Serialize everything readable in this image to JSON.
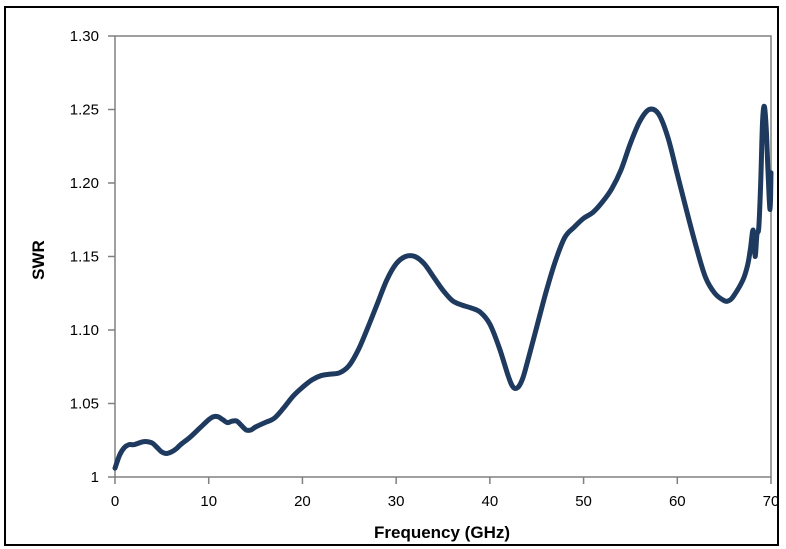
{
  "chart_data": {
    "type": "line",
    "xlabel": "Frequency (GHz)",
    "ylabel": "SWR",
    "xlim": [
      0,
      70
    ],
    "ylim": [
      1.0,
      1.3
    ],
    "x_ticks": [
      0,
      10,
      20,
      30,
      40,
      50,
      60,
      70
    ],
    "x_tick_labels": [
      "0",
      "10",
      "20",
      "30",
      "40",
      "50",
      "60",
      "70"
    ],
    "y_ticks": [
      1.0,
      1.05,
      1.1,
      1.15,
      1.2,
      1.25,
      1.3
    ],
    "y_tick_labels": [
      "1",
      "1.05",
      "1.10",
      "1.15",
      "1.20",
      "1.25",
      "1.30"
    ],
    "grid": false,
    "legend": "none",
    "colors": {
      "line": "#1f3a5f",
      "axis": "#808080",
      "frame": "#000000"
    },
    "series": [
      {
        "x": [
          0,
          0.5,
          1,
          1.5,
          2,
          2.5,
          3,
          3.5,
          4,
          4.5,
          5,
          5.5,
          6,
          6.5,
          7,
          8,
          9,
          10,
          10.5,
          11,
          11.5,
          12,
          12.5,
          13,
          13.5,
          14,
          14.5,
          15,
          16,
          17,
          18,
          19,
          20,
          21,
          22,
          23,
          24,
          25,
          26,
          27,
          28,
          29,
          30,
          31,
          32,
          33,
          34,
          35,
          36,
          37,
          38,
          39,
          40,
          41,
          42,
          42.5,
          43,
          43.5,
          44,
          45,
          46,
          47,
          48,
          49,
          50,
          51,
          52,
          53,
          54,
          55,
          56,
          57,
          58,
          59,
          60,
          61,
          62,
          63,
          64,
          65,
          65.5,
          66,
          67,
          67.5,
          67.8,
          68.1,
          68.3,
          68.5,
          68.7,
          68.9,
          69.1,
          69.3,
          69.5,
          69.7,
          69.9,
          70
        ],
        "values": [
          1.006,
          1.015,
          1.02,
          1.022,
          1.022,
          1.023,
          1.024,
          1.024,
          1.023,
          1.02,
          1.017,
          1.016,
          1.017,
          1.019,
          1.022,
          1.027,
          1.033,
          1.039,
          1.041,
          1.041,
          1.039,
          1.037,
          1.038,
          1.038,
          1.035,
          1.032,
          1.032,
          1.034,
          1.037,
          1.04,
          1.047,
          1.055,
          1.061,
          1.066,
          1.069,
          1.07,
          1.071,
          1.076,
          1.087,
          1.102,
          1.118,
          1.134,
          1.145,
          1.15,
          1.15,
          1.145,
          1.136,
          1.127,
          1.12,
          1.117,
          1.115,
          1.112,
          1.104,
          1.088,
          1.068,
          1.061,
          1.061,
          1.067,
          1.078,
          1.102,
          1.126,
          1.147,
          1.163,
          1.17,
          1.176,
          1.18,
          1.187,
          1.196,
          1.209,
          1.227,
          1.242,
          1.25,
          1.247,
          1.231,
          1.206,
          1.181,
          1.157,
          1.136,
          1.125,
          1.12,
          1.12,
          1.123,
          1.134,
          1.144,
          1.155,
          1.168,
          1.15,
          1.165,
          1.17,
          1.2,
          1.242,
          1.252,
          1.236,
          1.205,
          1.182,
          1.207
        ]
      }
    ]
  }
}
